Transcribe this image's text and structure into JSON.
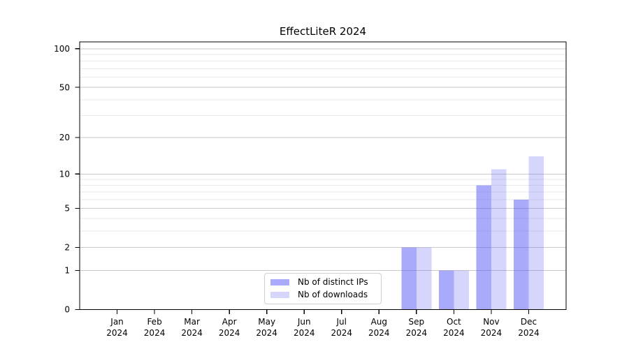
{
  "title": "EffectLiteR 2024",
  "legend": {
    "items": [
      {
        "label": "Nb of distinct IPs",
        "color": "rgba(85,85,245,0.5)"
      },
      {
        "label": "Nb of downloads",
        "color": "rgba(85,85,245,0.24)"
      }
    ]
  },
  "chart_data": {
    "type": "bar",
    "title": "EffectLiteR 2024",
    "x_months": [
      "Jan",
      "Feb",
      "Mar",
      "Apr",
      "May",
      "Jun",
      "Jul",
      "Aug",
      "Sep",
      "Oct",
      "Nov",
      "Dec"
    ],
    "x_year": "2024",
    "series": [
      {
        "name": "Nb of distinct IPs",
        "color": "rgba(85,85,245,0.5)",
        "values": [
          0,
          0,
          0,
          0,
          0,
          0,
          0,
          0,
          2,
          1,
          8,
          6
        ]
      },
      {
        "name": "Nb of downloads",
        "color": "rgba(85,85,245,0.24)",
        "values": [
          0,
          0,
          0,
          0,
          0,
          0,
          0,
          0,
          2,
          1,
          11,
          14
        ]
      }
    ],
    "xlabel": "",
    "ylabel": "",
    "y_scale": "log1p",
    "y_ticks_major": [
      0,
      1,
      2,
      5,
      10,
      20,
      50,
      100
    ],
    "y_ticks_minor": [
      3,
      4,
      6,
      7,
      8,
      9,
      30,
      40,
      60,
      70,
      80,
      90
    ],
    "ylim": [
      0,
      113
    ],
    "xlim": [
      -1,
      12
    ],
    "grid": "on",
    "bar_width_units": 0.4,
    "legend_position": "lower center"
  }
}
